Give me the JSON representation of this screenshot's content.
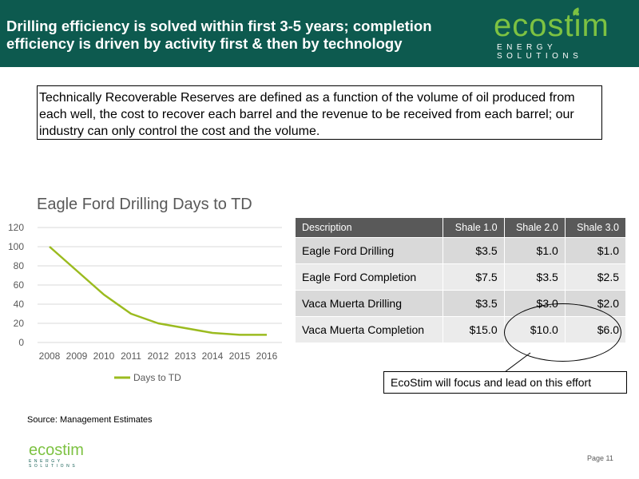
{
  "header": {
    "title": "Drilling efficiency is solved within first 3-5 years; completion efficiency is driven by activity first & then by technology"
  },
  "logo": {
    "wordmark": "ecostim",
    "tagline": "ENERGY SOLUTIONS"
  },
  "intro_text": "Technically Recoverable Reserves are defined as a function of the volume of oil produced from each well, the cost to recover each barrel and the revenue to be received from each barrel; our industry can only control the cost and the volume.",
  "chart_data": {
    "type": "line",
    "title": "Eagle Ford Drilling Days to TD",
    "x": [
      "2008",
      "2009",
      "2010",
      "2011",
      "2012",
      "2013",
      "2014",
      "2015",
      "2016"
    ],
    "series": [
      {
        "name": "Days to TD",
        "values": [
          100,
          75,
          50,
          30,
          20,
          15,
          10,
          8,
          8
        ],
        "color": "#9bbb1f"
      }
    ],
    "y_ticks": [
      0,
      20,
      40,
      60,
      80,
      100,
      120
    ],
    "ylim": [
      0,
      120
    ],
    "grid": true,
    "legend": "bottom"
  },
  "table": {
    "headers": [
      "Description",
      "Shale 1.0",
      "Shale 2.0",
      "Shale 3.0"
    ],
    "rows": [
      [
        "Eagle Ford Drilling",
        "$3.5",
        "$1.0",
        "$1.0"
      ],
      [
        "Eagle Ford Completion",
        "$7.5",
        "$3.5",
        "$2.5"
      ],
      [
        "Vaca Muerta Drilling",
        "$3.5",
        "$3.0",
        "$2.0"
      ],
      [
        "Vaca Muerta Completion",
        "$15.0",
        "$10.0",
        "$6.0"
      ]
    ]
  },
  "callout": "EcoStim will focus and lead on this effort",
  "source": "Source: Management Estimates",
  "page_number": "Page 11",
  "colors": {
    "header_bg": "#0d5a4f",
    "brand_green": "#7dc242",
    "table_header": "#595959"
  }
}
